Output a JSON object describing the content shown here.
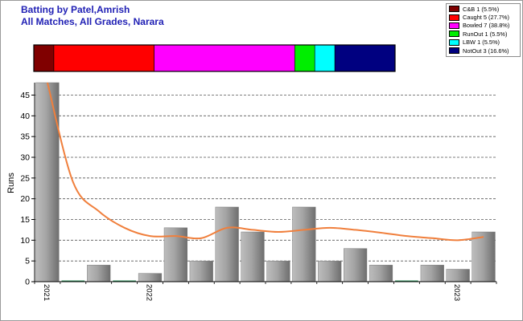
{
  "header": {
    "title_line1": "Batting by Patel,Amrish",
    "title_line2": "All Matches, All Grades, Narara"
  },
  "legend": [
    {
      "label": "C&B 1 (5.5%)",
      "color": "#800000"
    },
    {
      "label": "Caught 5 (27.7%)",
      "color": "#ff0000"
    },
    {
      "label": "Bowled 7 (38.8%)",
      "color": "#ff00ff"
    },
    {
      "label": "RunOut 1 (5.5%)",
      "color": "#00ee00"
    },
    {
      "label": "LBW 1 (5.5%)",
      "color": "#00ffff"
    },
    {
      "label": "NotOut 3 (16.6%)",
      "color": "#000080"
    }
  ],
  "chart_data": {
    "type": "bar",
    "ylabel": "Runs",
    "ylim": [
      0,
      48
    ],
    "yticks": [
      0,
      5,
      10,
      15,
      20,
      25,
      30,
      35,
      40,
      45
    ],
    "grid": "horizontal-dashed",
    "x_tick_labels": [
      {
        "label": "2021",
        "at_bar": 0
      },
      {
        "label": "2022",
        "at_bar": 4
      },
      {
        "label": "2023",
        "at_bar": 16
      }
    ],
    "series": [
      {
        "values": [
          48,
          0,
          4,
          0,
          2,
          13,
          5,
          18,
          12,
          5,
          18,
          5,
          8,
          4,
          0,
          4,
          3,
          12
        ],
        "bar_color": "#9c9c9c"
      }
    ],
    "trend_line": {
      "color": "#f07f3c",
      "values": [
        48,
        24,
        17,
        13,
        11,
        11,
        10.5,
        13,
        12.5,
        12,
        12.5,
        13,
        12.5,
        11.8,
        11,
        10.5,
        10,
        10.8
      ]
    },
    "dismissal_breakdown": {
      "type": "stacked-bar",
      "segments": [
        {
          "name": "C&B",
          "count": 1,
          "percent": 5.5,
          "color": "#800000"
        },
        {
          "name": "Caught",
          "count": 5,
          "percent": 27.7,
          "color": "#ff0000"
        },
        {
          "name": "Bowled",
          "count": 7,
          "percent": 38.8,
          "color": "#ff00ff"
        },
        {
          "name": "RunOut",
          "count": 1,
          "percent": 5.5,
          "color": "#00ee00"
        },
        {
          "name": "LBW",
          "count": 1,
          "percent": 5.5,
          "color": "#00ffff"
        },
        {
          "name": "NotOut",
          "count": 3,
          "percent": 16.6,
          "color": "#000080"
        }
      ]
    }
  }
}
